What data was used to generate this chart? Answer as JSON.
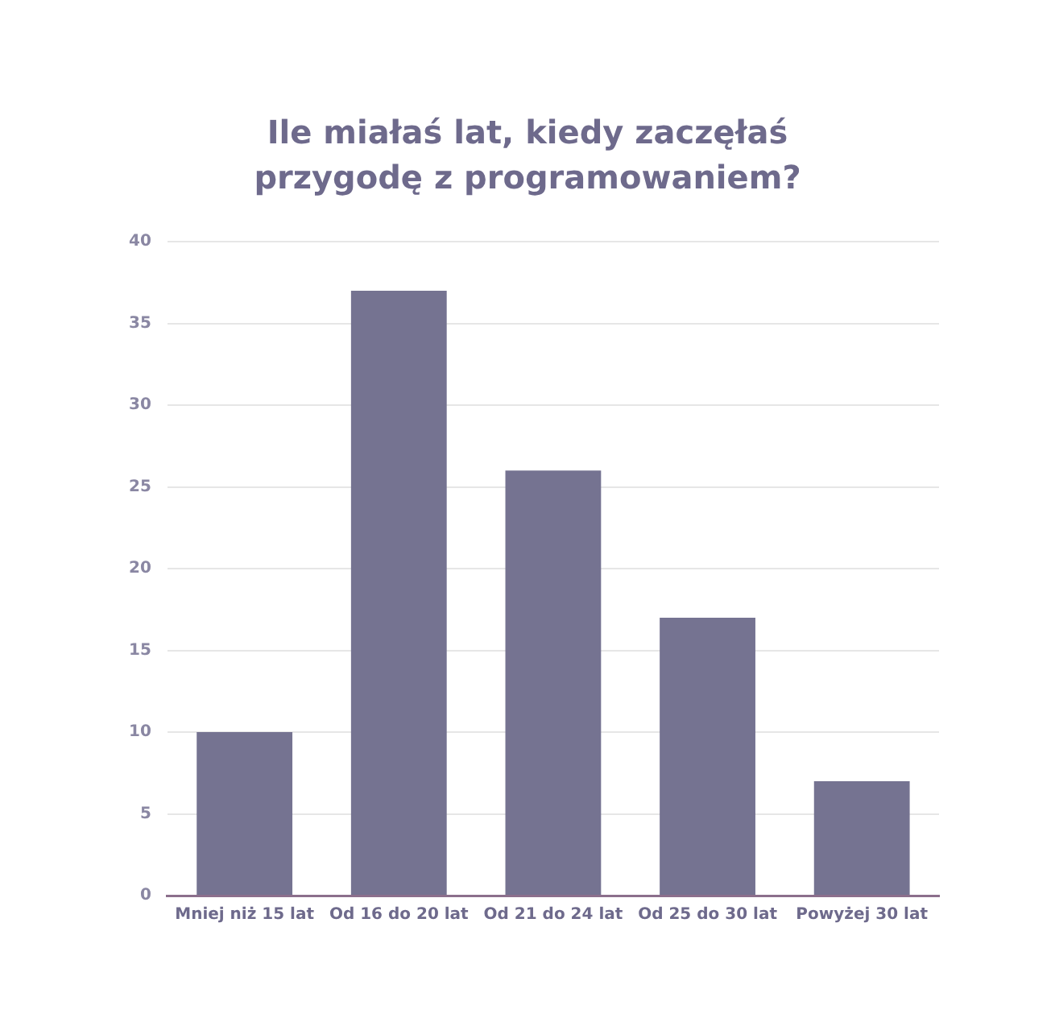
{
  "chart_data": {
    "type": "bar",
    "title": "Ile miałaś lat, kiedy zaczęłaś przygodę z programowaniem?",
    "categories": [
      "Mniej niż 15 lat",
      "Od 16 do 20 lat",
      "Od 21 do 24 lat",
      "Od 25 do 30 lat",
      "Powyżej 30 lat"
    ],
    "values": [
      10,
      37,
      26,
      17,
      7
    ],
    "color": "#757391",
    "ylim": [
      0,
      40
    ],
    "yticks": [
      0,
      5,
      10,
      15,
      20,
      25,
      30,
      35,
      40
    ],
    "grid": "y",
    "legend": false
  }
}
